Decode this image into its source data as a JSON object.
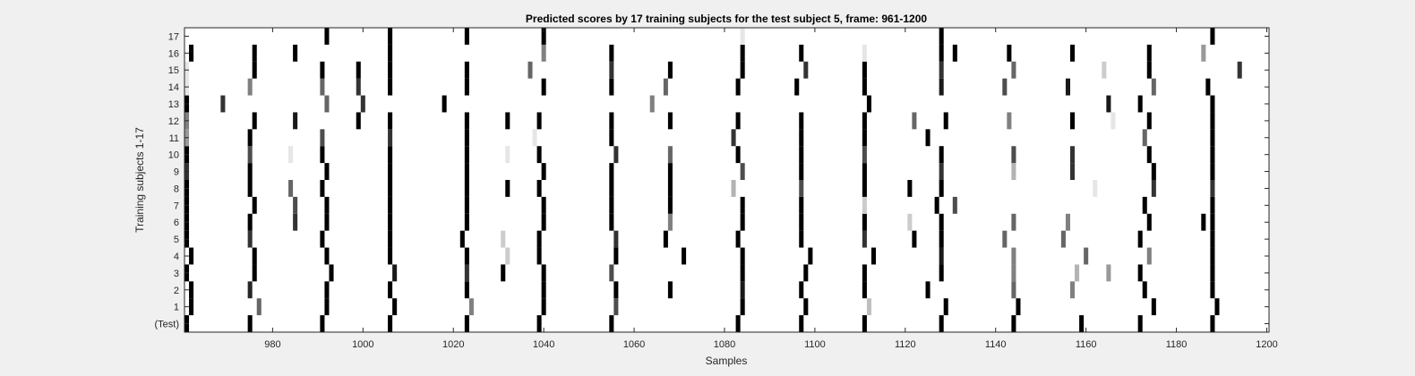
{
  "chart_data": {
    "type": "heatmap",
    "title": "Predicted scores by 17 training subjects for the test subject 5, frame: 961-1200",
    "xlabel": "Samples",
    "ylabel": "Training subjects 1-17",
    "xlim": [
      961,
      1200
    ],
    "x_ticks": [
      980,
      1000,
      1020,
      1040,
      1060,
      1080,
      1100,
      1120,
      1140,
      1160,
      1180,
      1200
    ],
    "rows": [
      "(Test)",
      "1",
      "2",
      "3",
      "4",
      "5",
      "6",
      "7",
      "8",
      "9",
      "10",
      "11",
      "12",
      "13",
      "14",
      "15",
      "16",
      "17"
    ],
    "value_range": [
      0,
      1
    ],
    "colormap": "white = 0, black = 1",
    "grid": false,
    "marks": [
      {
        "row": "(Test)",
        "points": [
          [
            961,
            1
          ],
          [
            975,
            1
          ],
          [
            991,
            1
          ],
          [
            1006,
            1
          ],
          [
            1023,
            1
          ],
          [
            1039,
            1
          ],
          [
            1055,
            1
          ],
          [
            1083,
            1
          ],
          [
            1097,
            1
          ],
          [
            1111,
            1
          ],
          [
            1128,
            1
          ],
          [
            1144,
            1
          ],
          [
            1159,
            1
          ],
          [
            1172,
            1
          ],
          [
            1188,
            1
          ]
        ]
      },
      {
        "row": "1",
        "points": [
          [
            962,
            1
          ],
          [
            977,
            0.6
          ],
          [
            992,
            1
          ],
          [
            1007,
            1
          ],
          [
            1024,
            0.5
          ],
          [
            1040,
            1
          ],
          [
            1056,
            0.7
          ],
          [
            1084,
            1
          ],
          [
            1098,
            1
          ],
          [
            1112,
            0.25
          ],
          [
            1129,
            1
          ],
          [
            1145,
            1
          ],
          [
            1175,
            1
          ],
          [
            1189,
            1
          ]
        ]
      },
      {
        "row": "2",
        "points": [
          [
            962,
            1
          ],
          [
            975,
            0.85
          ],
          [
            992,
            1
          ],
          [
            1006,
            1
          ],
          [
            1023,
            1
          ],
          [
            1040,
            1
          ],
          [
            1056,
            1
          ],
          [
            1068,
            1
          ],
          [
            1084,
            0.9
          ],
          [
            1097,
            1
          ],
          [
            1111,
            1
          ],
          [
            1125,
            1
          ],
          [
            1144,
            0.6
          ],
          [
            1157,
            0.5
          ],
          [
            1173,
            1
          ],
          [
            1188,
            1
          ]
        ]
      },
      {
        "row": "3",
        "points": [
          [
            961,
            1
          ],
          [
            976,
            1
          ],
          [
            993,
            1
          ],
          [
            1007,
            0.9
          ],
          [
            1023,
            0.8
          ],
          [
            1031,
            1
          ],
          [
            1040,
            1
          ],
          [
            1055,
            0.7
          ],
          [
            1084,
            1
          ],
          [
            1098,
            1
          ],
          [
            1111,
            1
          ],
          [
            1128,
            1
          ],
          [
            1144,
            0.5
          ],
          [
            1158,
            0.3
          ],
          [
            1165,
            0.4
          ],
          [
            1172,
            1
          ],
          [
            1188,
            1
          ]
        ]
      },
      {
        "row": "4",
        "points": [
          [
            962,
            1
          ],
          [
            976,
            1
          ],
          [
            992,
            1
          ],
          [
            1006,
            1
          ],
          [
            1023,
            1
          ],
          [
            1032,
            0.2
          ],
          [
            1039,
            1
          ],
          [
            1056,
            1
          ],
          [
            1071,
            1
          ],
          [
            1084,
            1
          ],
          [
            1099,
            1
          ],
          [
            1113,
            1
          ],
          [
            1128,
            0.9
          ],
          [
            1144,
            0.5
          ],
          [
            1160,
            0.6
          ],
          [
            1174,
            0.5
          ],
          [
            1188,
            1
          ]
        ]
      },
      {
        "row": "5",
        "points": [
          [
            961,
            1
          ],
          [
            975,
            0.8
          ],
          [
            991,
            1
          ],
          [
            1006,
            1
          ],
          [
            1022,
            1
          ],
          [
            1031,
            0.2
          ],
          [
            1039,
            1
          ],
          [
            1056,
            0.8
          ],
          [
            1067,
            1
          ],
          [
            1083,
            1
          ],
          [
            1097,
            1
          ],
          [
            1111,
            0.8
          ],
          [
            1122,
            1
          ],
          [
            1128,
            1
          ],
          [
            1142,
            0.6
          ],
          [
            1155,
            0.6
          ],
          [
            1172,
            1
          ],
          [
            1188,
            1
          ]
        ]
      },
      {
        "row": "6",
        "points": [
          [
            961,
            1
          ],
          [
            975,
            1
          ],
          [
            985,
            0.8
          ],
          [
            992,
            1
          ],
          [
            1006,
            1
          ],
          [
            1023,
            1
          ],
          [
            1040,
            1
          ],
          [
            1055,
            1
          ],
          [
            1068,
            0.5
          ],
          [
            1084,
            1
          ],
          [
            1097,
            1
          ],
          [
            1111,
            1
          ],
          [
            1121,
            0.2
          ],
          [
            1128,
            1
          ],
          [
            1144,
            0.6
          ],
          [
            1156,
            0.5
          ],
          [
            1174,
            1
          ],
          [
            1186,
            1
          ],
          [
            1188,
            1
          ]
        ]
      },
      {
        "row": "7",
        "points": [
          [
            961,
            1
          ],
          [
            976,
            1
          ],
          [
            985,
            0.7
          ],
          [
            992,
            1
          ],
          [
            1006,
            1
          ],
          [
            1023,
            1
          ],
          [
            1040,
            1
          ],
          [
            1055,
            1
          ],
          [
            1068,
            1
          ],
          [
            1084,
            1
          ],
          [
            1097,
            1
          ],
          [
            1111,
            0.2
          ],
          [
            1127,
            1
          ],
          [
            1131,
            0.7
          ],
          [
            1173,
            1
          ],
          [
            1188,
            1
          ]
        ]
      },
      {
        "row": "8",
        "points": [
          [
            961,
            1
          ],
          [
            975,
            1
          ],
          [
            984,
            0.6
          ],
          [
            991,
            1
          ],
          [
            1006,
            1
          ],
          [
            1023,
            1
          ],
          [
            1032,
            1
          ],
          [
            1039,
            1
          ],
          [
            1055,
            1
          ],
          [
            1068,
            1
          ],
          [
            1082,
            0.3
          ],
          [
            1097,
            0.7
          ],
          [
            1111,
            1
          ],
          [
            1121,
            1
          ],
          [
            1128,
            1
          ],
          [
            1162,
            0.1
          ],
          [
            1175,
            0.8
          ],
          [
            1188,
            0.8
          ]
        ]
      },
      {
        "row": "9",
        "points": [
          [
            961,
            0.8
          ],
          [
            975,
            1
          ],
          [
            992,
            1
          ],
          [
            1006,
            1
          ],
          [
            1023,
            1
          ],
          [
            1040,
            1
          ],
          [
            1055,
            1
          ],
          [
            1068,
            1
          ],
          [
            1084,
            0.7
          ],
          [
            1097,
            1
          ],
          [
            1111,
            1
          ],
          [
            1128,
            0.8
          ],
          [
            1144,
            0.3
          ],
          [
            1157,
            0.8
          ],
          [
            1175,
            1
          ],
          [
            1188,
            1
          ]
        ]
      },
      {
        "row": "10",
        "points": [
          [
            961,
            1
          ],
          [
            975,
            0.7
          ],
          [
            984,
            0.1
          ],
          [
            991,
            1
          ],
          [
            1006,
            1
          ],
          [
            1023,
            1
          ],
          [
            1032,
            0.1
          ],
          [
            1039,
            1
          ],
          [
            1056,
            0.8
          ],
          [
            1068,
            0.6
          ],
          [
            1083,
            1
          ],
          [
            1097,
            1
          ],
          [
            1111,
            0.7
          ],
          [
            1128,
            1
          ],
          [
            1144,
            0.7
          ],
          [
            1157,
            0.8
          ],
          [
            1174,
            1
          ],
          [
            1188,
            1
          ]
        ]
      },
      {
        "row": "11",
        "points": [
          [
            961,
            0.4
          ],
          [
            975,
            1
          ],
          [
            991,
            0.7
          ],
          [
            1006,
            0.8
          ],
          [
            1023,
            1
          ],
          [
            1038,
            0.1
          ],
          [
            1055,
            1
          ],
          [
            1082,
            0.8
          ],
          [
            1097,
            1
          ],
          [
            1111,
            1
          ],
          [
            1125,
            1
          ],
          [
            1173,
            0.6
          ],
          [
            1188,
            1
          ]
        ]
      },
      {
        "row": "12",
        "points": [
          [
            961,
            0.5
          ],
          [
            976,
            1
          ],
          [
            985,
            0.9
          ],
          [
            999,
            1
          ],
          [
            1006,
            1
          ],
          [
            1023,
            1
          ],
          [
            1032,
            1
          ],
          [
            1039,
            1
          ],
          [
            1055,
            1
          ],
          [
            1068,
            1
          ],
          [
            1083,
            1
          ],
          [
            1097,
            1
          ],
          [
            1111,
            1
          ],
          [
            1122,
            0.6
          ],
          [
            1129,
            1
          ],
          [
            1143,
            0.5
          ],
          [
            1157,
            1
          ],
          [
            1166,
            0.1
          ],
          [
            1174,
            1
          ],
          [
            1188,
            1
          ]
        ]
      },
      {
        "row": "13",
        "points": [
          [
            961,
            1
          ],
          [
            969,
            0.8
          ],
          [
            992,
            0.6
          ],
          [
            1000,
            0.8
          ],
          [
            1018,
            1
          ],
          [
            1064,
            0.5
          ],
          [
            1112,
            1
          ],
          [
            1165,
            0.9
          ],
          [
            1172,
            1
          ],
          [
            1188,
            1
          ]
        ]
      },
      {
        "row": "14",
        "points": [
          [
            961,
            0.1
          ],
          [
            975,
            0.5
          ],
          [
            991,
            0.6
          ],
          [
            999,
            0.8
          ],
          [
            1006,
            1
          ],
          [
            1023,
            1
          ],
          [
            1040,
            1
          ],
          [
            1055,
            1
          ],
          [
            1067,
            0.6
          ],
          [
            1083,
            1
          ],
          [
            1096,
            1
          ],
          [
            1111,
            1
          ],
          [
            1128,
            0.9
          ],
          [
            1142,
            0.7
          ],
          [
            1156,
            0.9
          ],
          [
            1175,
            0.6
          ],
          [
            1187,
            1
          ]
        ]
      },
      {
        "row": "15",
        "points": [
          [
            961,
            0.1
          ],
          [
            976,
            1
          ],
          [
            991,
            1
          ],
          [
            999,
            1
          ],
          [
            1006,
            1
          ],
          [
            1023,
            1
          ],
          [
            1037,
            0.6
          ],
          [
            1055,
            0.8
          ],
          [
            1068,
            1
          ],
          [
            1084,
            1
          ],
          [
            1098,
            0.8
          ],
          [
            1111,
            1
          ],
          [
            1128,
            0.8
          ],
          [
            1144,
            0.6
          ],
          [
            1164,
            0.2
          ],
          [
            1174,
            1
          ],
          [
            1194,
            0.8
          ]
        ]
      },
      {
        "row": "16",
        "points": [
          [
            962,
            1
          ],
          [
            976,
            1
          ],
          [
            985,
            1
          ],
          [
            1006,
            1
          ],
          [
            1040,
            0.5
          ],
          [
            1055,
            1
          ],
          [
            1084,
            1
          ],
          [
            1097,
            1
          ],
          [
            1111,
            0.1
          ],
          [
            1128,
            1
          ],
          [
            1131,
            1
          ],
          [
            1143,
            1
          ],
          [
            1157,
            1
          ],
          [
            1174,
            1
          ],
          [
            1186,
            0.4
          ]
        ]
      },
      {
        "row": "17",
        "points": [
          [
            992,
            1
          ],
          [
            1006,
            1
          ],
          [
            1023,
            1
          ],
          [
            1040,
            1
          ],
          [
            1084,
            0.1
          ],
          [
            1128,
            1
          ],
          [
            1188,
            1
          ]
        ]
      }
    ]
  }
}
